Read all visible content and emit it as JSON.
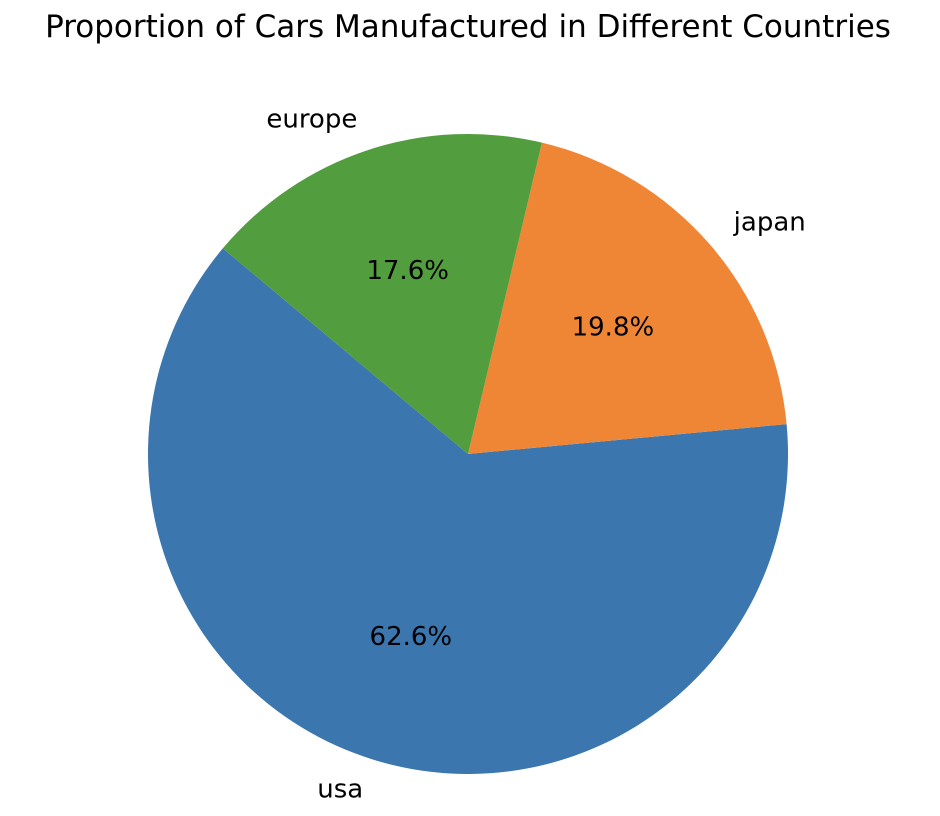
{
  "chart_data": {
    "type": "pie",
    "title": "Proportion of Cars Manufactured in Different Countries",
    "slices": [
      {
        "label": "usa",
        "value": 62.6,
        "pct_label": "62.6%",
        "color": "#3b76af"
      },
      {
        "label": "japan",
        "value": 19.8,
        "pct_label": "19.8%",
        "color": "#ef8636"
      },
      {
        "label": "europe",
        "value": 17.6,
        "pct_label": "17.6%",
        "color": "#529e3f"
      }
    ],
    "start_angle_deg": 140,
    "direction": "counterclockwise"
  }
}
